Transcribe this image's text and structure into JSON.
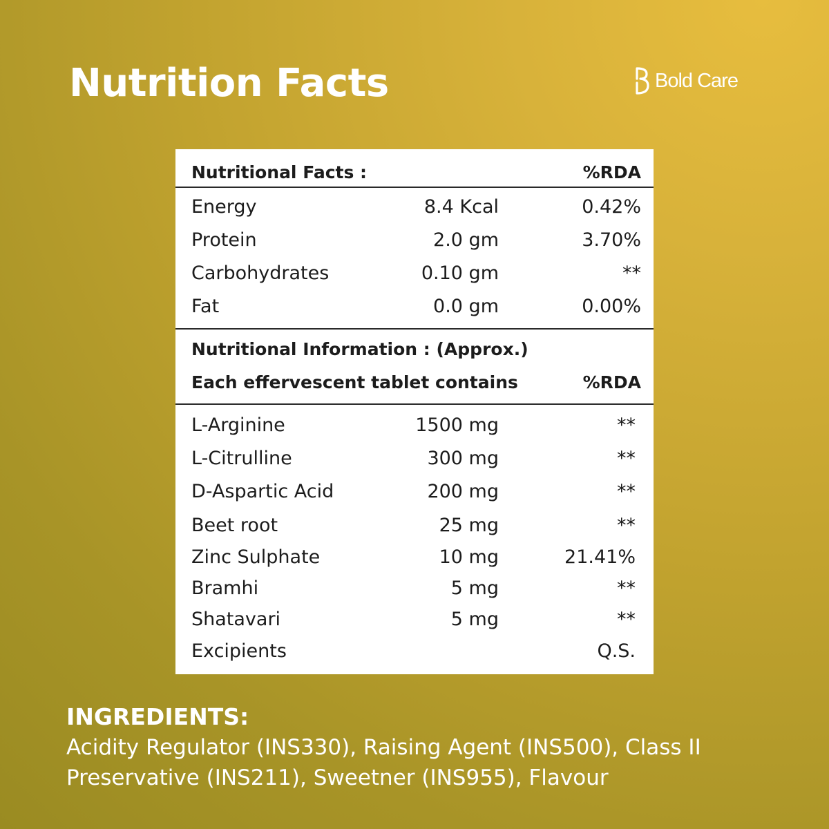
{
  "page": {
    "title": "Nutrition Facts"
  },
  "brand": {
    "name": "Bold Care",
    "logo_icon": "bold-care-b-logo"
  },
  "facts_header": {
    "label": "Nutritional Facts :",
    "rda": "%RDA"
  },
  "facts": [
    {
      "name": "Energy",
      "amount": "8.4 Kcal",
      "rda": "0.42%"
    },
    {
      "name": "Protein",
      "amount": "2.0 gm",
      "rda": "3.70%"
    },
    {
      "name": "Carbohydrates",
      "amount": "0.10 gm",
      "rda": "**"
    },
    {
      "name": "Fat",
      "amount": "0.0 gm",
      "rda": "0.00%"
    }
  ],
  "info_header": {
    "line1": "Nutritional Information : (Approx.)",
    "line2": "Each effervescent tablet contains",
    "rda": "%RDA"
  },
  "ingredients_table": [
    {
      "name": "L-Arginine",
      "amount": "1500 mg",
      "rda": "**"
    },
    {
      "name": "L-Citrulline",
      "amount": "300 mg",
      "rda": "**"
    },
    {
      "name": "D-Aspartic Acid",
      "amount": "200 mg",
      "rda": "**"
    },
    {
      "name": "Beet root",
      "amount": "25 mg",
      "rda": "**"
    },
    {
      "name": "Zinc Sulphate",
      "amount": "10 mg",
      "rda": "21.41%"
    },
    {
      "name": "Bramhi",
      "amount": "5 mg",
      "rda": "**"
    },
    {
      "name": "Shatavari",
      "amount": "5 mg",
      "rda": "**"
    },
    {
      "name": "Excipients",
      "amount": "",
      "rda": "Q.S."
    }
  ],
  "ingredients": {
    "heading": "INGREDIENTS:",
    "line1": "Acidity Regulator (INS330), Raising Agent (INS500), Class II",
    "line2": "Preservative (INS211), Sweetner (INS955), Flavour"
  },
  "colors": {
    "background": "#c2a32f",
    "card": "#ffffff",
    "text_dark": "#1c1c1c"
  }
}
